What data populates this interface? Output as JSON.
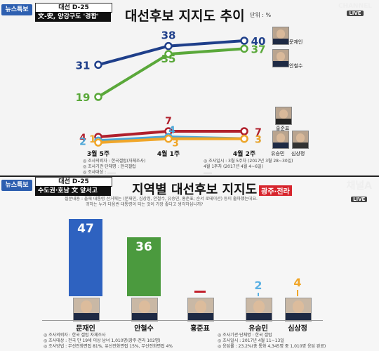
{
  "top": {
    "badge": "뉴스특보",
    "dday": "대선 D-25",
    "subtitle": "文-安, 양강구도 '경합'",
    "title": "대선후보 지지도 추이",
    "unit": "단위 : %",
    "logo": "CHANNEL",
    "logo_live": "LIVE",
    "notes_left": [
      "◎ 조사의뢰자 : 한국갤럽(자체조사)",
      "◎ 조사기관·단체명 : 한국갤럽",
      "◎ 조사대상 : ……"
    ],
    "notes_right": [
      "◎ 조사일시 : 3월 5주차 (2017년 3월 28~30일)",
      "                 4월 1주차 (2017년 4월 4~6일)",
      "                 ……"
    ],
    "candidates": [
      {
        "name": "문재인",
        "color": "#1f3f8a"
      },
      {
        "name": "안철수",
        "color": "#5aa83a"
      },
      {
        "name": "홍준표",
        "color": "#b0202c"
      },
      {
        "name": "유승민",
        "color": "#4aa6d8"
      },
      {
        "name": "심상정",
        "color": "#f0a629"
      }
    ]
  },
  "chart_data": [
    {
      "type": "line",
      "title": "대선후보 지지도 추이",
      "x": [
        "3월 5주",
        "4월 1주",
        "4월 2주"
      ],
      "ylabel": "단위 : %",
      "series": [
        {
          "name": "문재인",
          "values": [
            31,
            38,
            40
          ],
          "color": "#1f3f8a"
        },
        {
          "name": "안철수",
          "values": [
            19,
            35,
            37
          ],
          "color": "#5aa83a"
        },
        {
          "name": "홍준표",
          "values": [
            4,
            7,
            7
          ],
          "color": "#b0202c"
        },
        {
          "name": "유승민",
          "values": [
            2,
            4,
            3
          ],
          "color": "#4aa6d8"
        },
        {
          "name": "심상정",
          "values": [
            1,
            3,
            3
          ],
          "color": "#f0a629"
        }
      ]
    },
    {
      "type": "bar",
      "title": "지역별 대선후보 지지도",
      "categories": [
        "문재인",
        "안철수",
        "홍준표",
        "유승민",
        "심상정"
      ],
      "values": [
        47,
        36,
        0,
        2,
        4
      ],
      "colors": [
        "#2e62c0",
        "#4b9a3e",
        "#c2202c",
        "#5ab0e3",
        "#f0a629"
      ]
    }
  ],
  "bottom": {
    "badge": "뉴스특보",
    "dday": "대선 D-25",
    "subtitle": "수도권·호남 文 앞서고",
    "title": "지역별 대선후보 지지도",
    "region": "광주·전라",
    "logo": "채널A",
    "logo_live": "LIVE",
    "question": [
      "질문내용 : 올해 대통령 선거에는 (문재인, 심상정, 안철수, 유승민, 홍준표; 순서 로테이션) 등이 출마했는데요.",
      "귀하는 누가 다음번 대통령이 되는 것이 가장 좋다고 생각하십니까?"
    ],
    "notes_left": [
      "◎ 조사의뢰자 : 한국 갤럽 자체조사",
      "◎ 조사대상 : 전국 만 19세 이상 남녀 1,010명(광주·전라 102명)",
      "◎ 조사방법 : 무선전화면접 81%, 유선전화면접 15%, 무선전화면접 4%"
    ],
    "notes_right": [
      "◎ 조사기관·단체명 : 한국 갤럽",
      "◎ 조사일시 : 2017년 4월 11~13일",
      "◎ 응답률 : 23.2%(총 통화 4,345명 중 1,010명 응답 완료)"
    ]
  }
}
